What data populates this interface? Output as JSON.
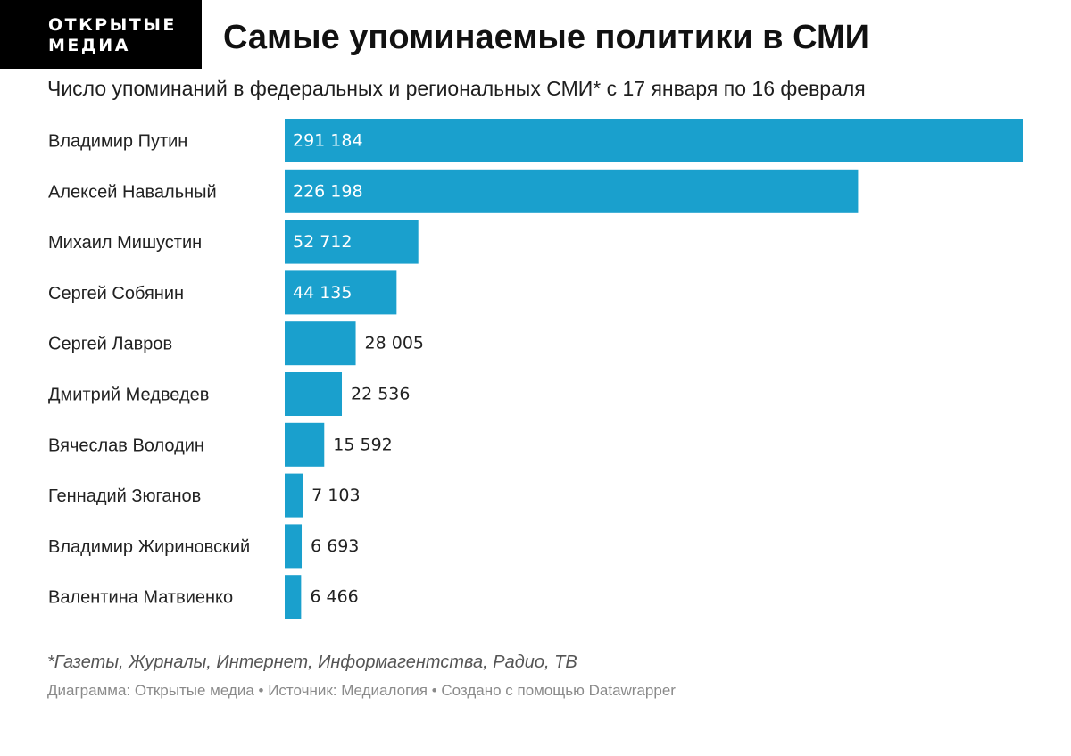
{
  "logo": {
    "line1": "ОТКРЫТЫЕ",
    "line2": "МЕДИА"
  },
  "header": {
    "title": "Самые упоминаемые политики в СМИ",
    "subtitle": "Число упоминаний в федеральных и региональных СМИ* с 17 января по 16 февраля"
  },
  "chart_data": {
    "type": "bar",
    "orientation": "horizontal",
    "categories": [
      "Владимир Путин",
      "Алексей Навальный",
      "Михаил Мишустин",
      "Сергей Собянин",
      "Сергей Лавров",
      "Дмитрий Медведев",
      "Вячеслав Володин",
      "Геннадий Зюганов",
      "Владимир Жириновский",
      "Валентина Матвиенко"
    ],
    "values": [
      291184,
      226198,
      52712,
      44135,
      28005,
      22536,
      15592,
      7103,
      6693,
      6466
    ],
    "value_labels": [
      "291 184",
      "226 198",
      "52 712",
      "44 135",
      "28 005",
      "22 536",
      "15 592",
      "7 103",
      "6 693",
      "6 466"
    ],
    "xlim": [
      0,
      291184
    ],
    "grid": false,
    "colors": {
      "bar": "#1aa0cd",
      "label_inside": "#ffffff",
      "label_outside": "#222222"
    }
  },
  "footer": {
    "footnote": "*Газеты, Журналы, Интернет, Информагентства, Радио, ТВ",
    "credits": "Диаграмма: Открытые медиа • Источник: Медиалогия • Создано с помощью Datawrapper"
  }
}
